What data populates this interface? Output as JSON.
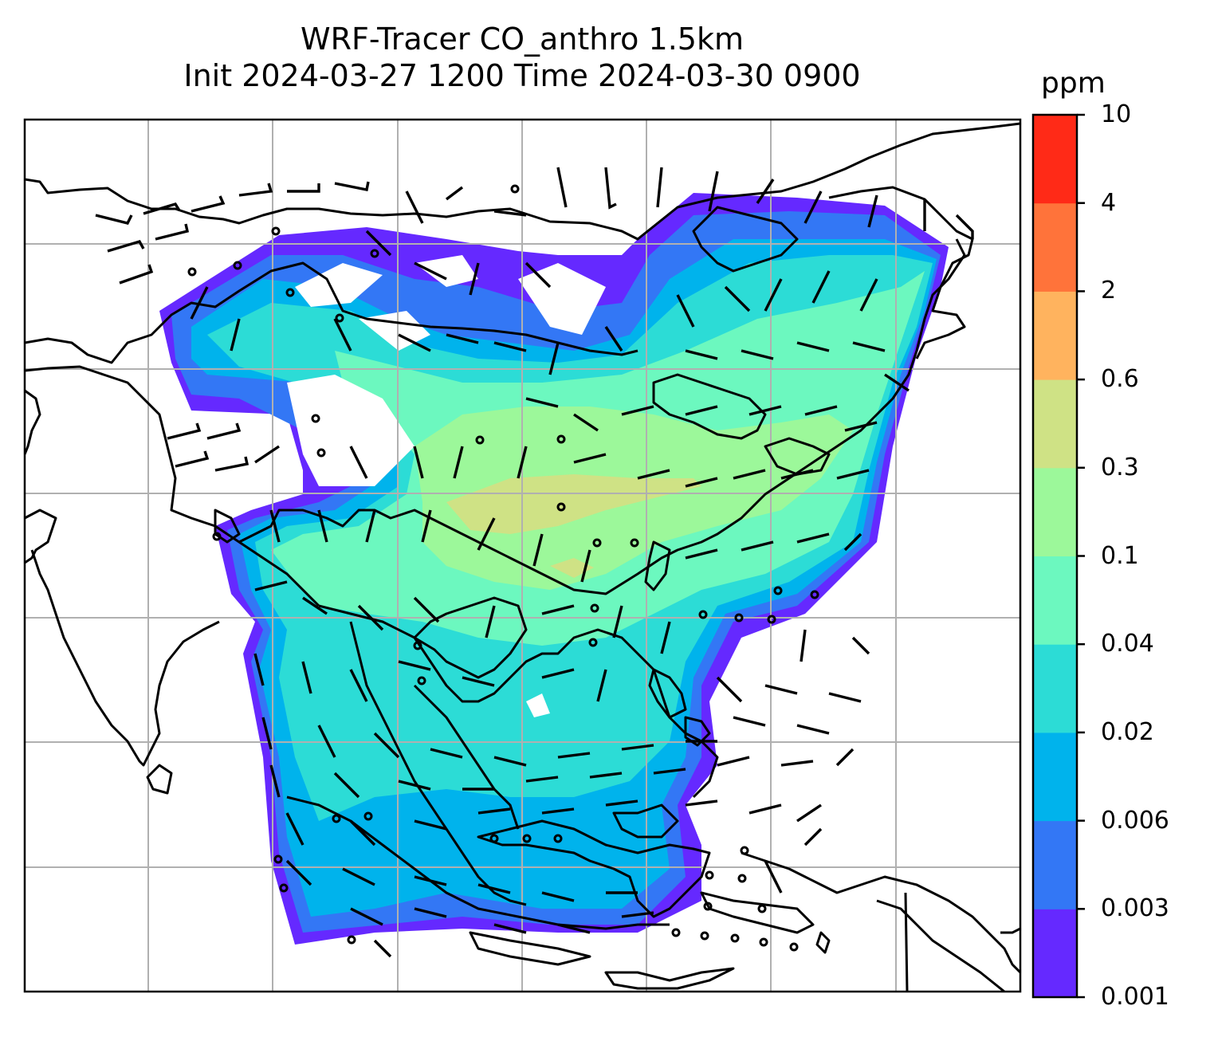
{
  "title": {
    "line1": "WRF-Tracer CO_anthro 1.5km",
    "line2": "Init 2024-03-27 1200 Time 2024-03-30 0900"
  },
  "colorbar": {
    "unit": "ppm",
    "levels": [
      "0.001",
      "0.003",
      "0.006",
      "0.02",
      "0.04",
      "0.1",
      "0.3",
      "0.6",
      "2",
      "4",
      "10"
    ],
    "colors": [
      "#6529ff",
      "#3377f5",
      "#00b3ec",
      "#2cdcd6",
      "#6cf8bf",
      "#9cf89a",
      "#cfe285",
      "#ffb35e",
      "#ff733a",
      "#ff2a17"
    ]
  },
  "map": {
    "field": "CO_anthro",
    "level": "1.5km",
    "background": "#ffffff",
    "gridlines": true,
    "coastlines": true,
    "wind_barbs": true
  }
}
